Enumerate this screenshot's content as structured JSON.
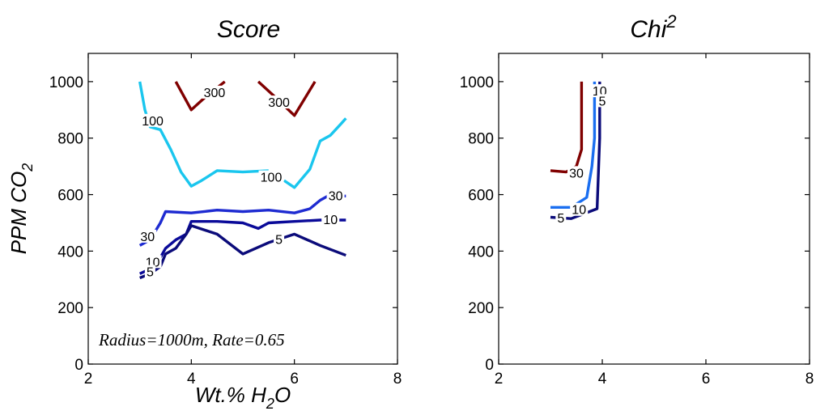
{
  "chart_data": [
    {
      "type": "line",
      "title": "Score",
      "xlabel": "Wt.% H",
      "xlabel_sub": "2",
      "xlabel_tail": "O",
      "ylabel": "PPM CO",
      "ylabel_sub": "2",
      "xlim": [
        2,
        8
      ],
      "ylim": [
        0,
        1100
      ],
      "xticks": [
        2,
        4,
        6,
        8
      ],
      "yticks": [
        0,
        200,
        400,
        600,
        800,
        1000
      ],
      "annotation": "Radius=1000m, Rate=0.65",
      "series": [
        {
          "level": "300",
          "color": "#800000",
          "points": [
            [
              3.7,
              1000
            ],
            [
              4.0,
              900
            ],
            [
              4.3,
              950
            ],
            [
              4.65,
              1000
            ]
          ]
        },
        {
          "level": "300",
          "color": "#800000",
          "points": [
            [
              5.3,
              1000
            ],
            [
              5.6,
              950
            ],
            [
              6.0,
              880
            ],
            [
              6.4,
              1000
            ]
          ]
        },
        {
          "level": "100",
          "color": "#1ac6ee",
          "points": [
            [
              3.0,
              1000
            ],
            [
              3.1,
              900
            ],
            [
              3.2,
              840
            ],
            [
              3.4,
              830
            ],
            [
              3.6,
              760
            ],
            [
              3.8,
              680
            ],
            [
              4.0,
              630
            ],
            [
              4.2,
              650
            ],
            [
              4.5,
              685
            ],
            [
              5.0,
              680
            ],
            [
              5.5,
              685
            ]
          ]
        },
        {
          "level": "100",
          "color": "#1ac6ee",
          "points": [
            [
              5.8,
              650
            ],
            [
              6.0,
              625
            ],
            [
              6.3,
              690
            ],
            [
              6.5,
              790
            ],
            [
              6.7,
              810
            ],
            [
              6.9,
              850
            ],
            [
              7.0,
              870
            ]
          ]
        },
        {
          "level": "30",
          "color": "#1e2bd1",
          "points": [
            [
              3.0,
              420
            ],
            [
              3.2,
              440
            ],
            [
              3.4,
              500
            ],
            [
              3.5,
              540
            ],
            [
              4.0,
              535
            ],
            [
              4.5,
              545
            ],
            [
              5.0,
              540
            ],
            [
              5.5,
              545
            ],
            [
              6.0,
              535
            ],
            [
              6.3,
              550
            ],
            [
              6.5,
              580
            ],
            [
              6.7,
              600
            ],
            [
              6.8,
              595
            ],
            [
              7.0,
              595
            ]
          ]
        },
        {
          "level": "10",
          "color": "#0a0a99",
          "points": [
            [
              3.0,
              320
            ],
            [
              3.3,
              345
            ],
            [
              3.5,
              410
            ],
            [
              3.7,
              440
            ],
            [
              3.9,
              460
            ],
            [
              4.0,
              505
            ],
            [
              4.5,
              505
            ],
            [
              5.0,
              500
            ],
            [
              5.3,
              480
            ],
            [
              5.5,
              500
            ],
            [
              6.0,
              505
            ],
            [
              6.5,
              510
            ],
            [
              7.0,
              510
            ]
          ]
        },
        {
          "level": "5",
          "color": "#0b0b7a",
          "points": [
            [
              3.0,
              305
            ],
            [
              3.2,
              320
            ],
            [
              3.4,
              345
            ],
            [
              3.5,
              390
            ],
            [
              3.7,
              410
            ],
            [
              3.9,
              460
            ],
            [
              4.0,
              490
            ],
            [
              4.5,
              460
            ],
            [
              5.0,
              390
            ],
            [
              5.5,
              430
            ],
            [
              6.0,
              460
            ],
            [
              6.5,
              420
            ],
            [
              7.0,
              385
            ]
          ]
        }
      ],
      "contour_labels": [
        {
          "text": "300",
          "x": 4.45,
          "y": 960
        },
        {
          "text": "300",
          "x": 5.7,
          "y": 925
        },
        {
          "text": "100",
          "x": 3.25,
          "y": 860
        },
        {
          "text": "100",
          "x": 5.55,
          "y": 660
        },
        {
          "text": "30",
          "x": 6.8,
          "y": 595
        },
        {
          "text": "10",
          "x": 6.7,
          "y": 510
        },
        {
          "text": "30",
          "x": 3.15,
          "y": 450
        },
        {
          "text": "5",
          "x": 5.7,
          "y": 440
        },
        {
          "text": "10",
          "x": 3.25,
          "y": 360
        },
        {
          "text": "5",
          "x": 3.2,
          "y": 325
        }
      ]
    },
    {
      "type": "line",
      "title": "Chi",
      "title_sup": "2",
      "xlim": [
        2,
        8
      ],
      "ylim": [
        0,
        1100
      ],
      "xticks": [
        2,
        4,
        6,
        8
      ],
      "yticks": [
        0,
        200,
        400,
        600,
        800,
        1000
      ],
      "series": [
        {
          "level": "30",
          "color": "#800000",
          "points": [
            [
              3.0,
              685
            ],
            [
              3.3,
              680
            ],
            [
              3.5,
              700
            ],
            [
              3.6,
              760
            ],
            [
              3.6,
              1000
            ]
          ]
        },
        {
          "level": "10",
          "color": "#1a6ef0",
          "points": [
            [
              3.0,
              555
            ],
            [
              3.4,
              555
            ],
            [
              3.7,
              590
            ],
            [
              3.8,
              700
            ],
            [
              3.85,
              800
            ],
            [
              3.85,
              1000
            ]
          ]
        },
        {
          "level": "5",
          "color": "#0b0b7a",
          "points": [
            [
              3.0,
              520
            ],
            [
              3.4,
              515
            ],
            [
              3.9,
              550
            ],
            [
              3.95,
              800
            ],
            [
              3.95,
              1000
            ]
          ]
        }
      ],
      "contour_labels": [
        {
          "text": "30",
          "x": 3.5,
          "y": 675
        },
        {
          "text": "10",
          "x": 3.55,
          "y": 545
        },
        {
          "text": "5",
          "x": 3.2,
          "y": 515
        },
        {
          "text": "10",
          "x": 3.95,
          "y": 965
        },
        {
          "text": "5",
          "x": 4.0,
          "y": 930
        }
      ]
    }
  ]
}
